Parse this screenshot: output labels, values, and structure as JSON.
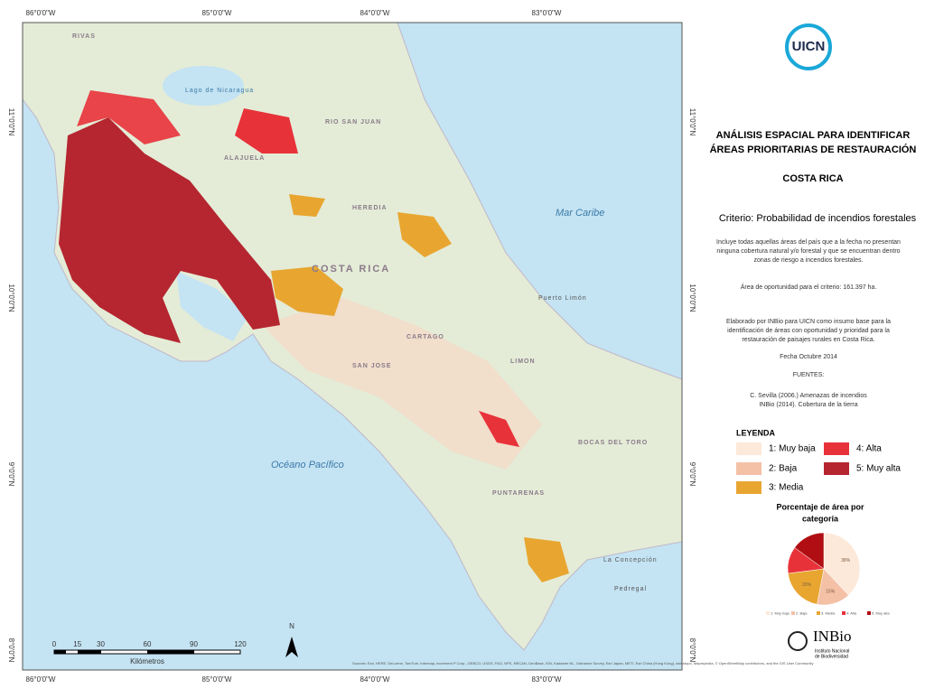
{
  "map": {
    "coords_top": [
      "86°0'0\"W",
      "85°0'0\"W",
      "84°0'0\"W",
      "83°0'0\"W"
    ],
    "coords_bottom": [
      "86°0'0\"W",
      "85°0'0\"W",
      "84°0'0\"W",
      "83°0'0\"W"
    ],
    "coords_left": [
      "11°0'0\"N",
      "10°0'0\"N",
      "9°0'0\"N",
      "8°0'0\"N"
    ],
    "coords_right": [
      "11°0'0\"N",
      "10°0'0\"N",
      "9°0'0\"N",
      "8°0'0\"N"
    ],
    "labels": [
      "Mar Caribe",
      "Océano Pacífico",
      "COSTA RICA",
      "RIVAS",
      "Lago de Nicaragua",
      "RIO SAN JUAN",
      "ALAJUELA",
      "HEREDIA",
      "CARTAGO",
      "LIMON",
      "SAN JOSE",
      "PUNTARENAS",
      "Puerto Limón",
      "BOCAS DEL TORO",
      "La Concepción",
      "Pedregal"
    ],
    "scale_ticks": [
      0,
      15,
      30,
      60,
      90,
      120
    ],
    "scale_unit": "Kilómetros",
    "north": "N",
    "attribution": "Sources: Esri, HERE, DeLorme, TomTom, Intermap, increment P Corp., GEBCO, USGS, FAO, NPS, NRCAN, GeoBase, IGN, Kadaster NL, Ordnance Survey, Esri Japan, METI, Esri China (Hong Kong), swisstopo, Mapmyindia, © OpenStreetMap contributors, and the GIS User Community"
  },
  "panel": {
    "logo": "UICN",
    "title": [
      "ANÁLISIS ESPACIAL PARA IDENTIFICAR",
      "ÁREAS PRIORITARIAS DE RESTAURACIÓN"
    ],
    "country": "COSTA RICA",
    "criterion": "Criterio: Probabilidad de incendios forestales",
    "description": [
      "Incluye todas aquellas áreas del país que a la fecha no presentan",
      "ninguna cobertura natural y/o forestal y que se encuentran dentro",
      "zonas de riesgo a incendios forestales."
    ],
    "area": "Área de oportunidad para el criterio: 161.397 ha.",
    "credit": [
      "Elaborado por INBio para UICN como insumo base para la",
      "identificación de áreas con oportunidad y prioridad para la",
      "restauración de paisajes rurales en Costa Rica."
    ],
    "date": "Fecha Octubre 2014",
    "sources_title": "FUENTES:",
    "sources": [
      "C. Sevilla (2006.) Amenazas de incendios",
      "INBio (2014). Cobertura de la tierra"
    ],
    "legend_title": "LEYENDA",
    "legend": [
      {
        "label": "1: Muy baja",
        "color": "#fde9d9"
      },
      {
        "label": "2: Baja",
        "color": "#f4c0a6"
      },
      {
        "label": "3: Media",
        "color": "#e8a631"
      },
      {
        "label": "4: Alta",
        "color": "#e8323a"
      },
      {
        "label": "5: Muy alta",
        "color": "#b52630"
      }
    ],
    "inbio": "INBio",
    "inbio_sub": [
      "Instituto Nacional",
      "de Biodiversidad"
    ]
  },
  "chart_data": {
    "type": "pie",
    "title": [
      "Porcentaje de área por",
      "categoría"
    ],
    "categories": [
      "1: Muy baja",
      "2: Baja",
      "3: Media",
      "4: Alta",
      "5: Muy alta"
    ],
    "values": [
      38,
      15,
      20,
      12,
      15
    ],
    "value_labels": [
      "38%",
      "15%",
      "20%",
      null,
      null
    ],
    "colors": [
      "#fde9d9",
      "#f4c0a6",
      "#e8a631",
      "#e8323a",
      "#b00e12"
    ]
  }
}
